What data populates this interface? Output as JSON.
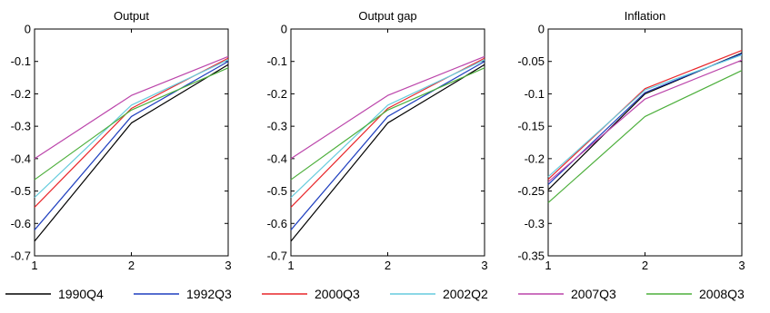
{
  "chart_data": [
    {
      "type": "line",
      "title": "Output",
      "x": [
        1,
        2,
        3
      ],
      "xticks": [
        "1",
        "2",
        "3"
      ],
      "xlim": [
        1,
        3
      ],
      "ylim": [
        -0.7,
        0
      ],
      "yticks": [
        "0",
        "-0.1",
        "-0.2",
        "-0.3",
        "-0.4",
        "-0.5",
        "-0.6",
        "-0.7"
      ],
      "grid": false,
      "series": [
        {
          "name": "1990Q4",
          "values": [
            -0.655,
            -0.29,
            -0.11
          ]
        },
        {
          "name": "1992Q3",
          "values": [
            -0.62,
            -0.27,
            -0.1
          ]
        },
        {
          "name": "2000Q3",
          "values": [
            -0.55,
            -0.245,
            -0.09
          ]
        },
        {
          "name": "2002Q2",
          "values": [
            -0.52,
            -0.235,
            -0.095
          ]
        },
        {
          "name": "2007Q3",
          "values": [
            -0.4,
            -0.205,
            -0.085
          ]
        },
        {
          "name": "2008Q3",
          "values": [
            -0.465,
            -0.25,
            -0.12
          ]
        }
      ]
    },
    {
      "type": "line",
      "title": "Output gap",
      "x": [
        1,
        2,
        3
      ],
      "xticks": [
        "1",
        "2",
        "3"
      ],
      "xlim": [
        1,
        3
      ],
      "ylim": [
        -0.7,
        0
      ],
      "yticks": [
        "0",
        "-0.1",
        "-0.2",
        "-0.3",
        "-0.4",
        "-0.5",
        "-0.6",
        "-0.7"
      ],
      "grid": false,
      "series": [
        {
          "name": "1990Q4",
          "values": [
            -0.655,
            -0.29,
            -0.11
          ]
        },
        {
          "name": "1992Q3",
          "values": [
            -0.62,
            -0.27,
            -0.1
          ]
        },
        {
          "name": "2000Q3",
          "values": [
            -0.55,
            -0.245,
            -0.09
          ]
        },
        {
          "name": "2002Q2",
          "values": [
            -0.52,
            -0.235,
            -0.095
          ]
        },
        {
          "name": "2007Q3",
          "values": [
            -0.4,
            -0.205,
            -0.085
          ]
        },
        {
          "name": "2008Q3",
          "values": [
            -0.465,
            -0.25,
            -0.12
          ]
        }
      ]
    },
    {
      "type": "line",
      "title": "Inflation",
      "x": [
        1,
        2,
        3
      ],
      "xticks": [
        "1",
        "2",
        "3"
      ],
      "xlim": [
        1,
        3
      ],
      "ylim": [
        -0.35,
        0
      ],
      "yticks": [
        "0",
        "-0.05",
        "-0.1",
        "-0.15",
        "-0.2",
        "-0.25",
        "-0.3",
        "-0.35"
      ],
      "grid": false,
      "series": [
        {
          "name": "1990Q4",
          "values": [
            -0.248,
            -0.1,
            -0.037
          ]
        },
        {
          "name": "1992Q3",
          "values": [
            -0.24,
            -0.098,
            -0.038
          ]
        },
        {
          "name": "2000Q3",
          "values": [
            -0.232,
            -0.092,
            -0.033
          ]
        },
        {
          "name": "2002Q2",
          "values": [
            -0.228,
            -0.094,
            -0.04
          ]
        },
        {
          "name": "2007Q3",
          "values": [
            -0.236,
            -0.108,
            -0.048
          ]
        },
        {
          "name": "2008Q3",
          "values": [
            -0.268,
            -0.135,
            -0.064
          ]
        }
      ]
    }
  ],
  "legend": {
    "placement": "bottom",
    "entries": [
      {
        "label": "1990Q4",
        "color": "#000000"
      },
      {
        "label": "1992Q3",
        "color": "#1f3fbf"
      },
      {
        "label": "2000Q3",
        "color": "#e8262a"
      },
      {
        "label": "2002Q2",
        "color": "#66ccdd"
      },
      {
        "label": "2007Q3",
        "color": "#bb44aa"
      },
      {
        "label": "2008Q3",
        "color": "#4daf3c"
      }
    ]
  }
}
